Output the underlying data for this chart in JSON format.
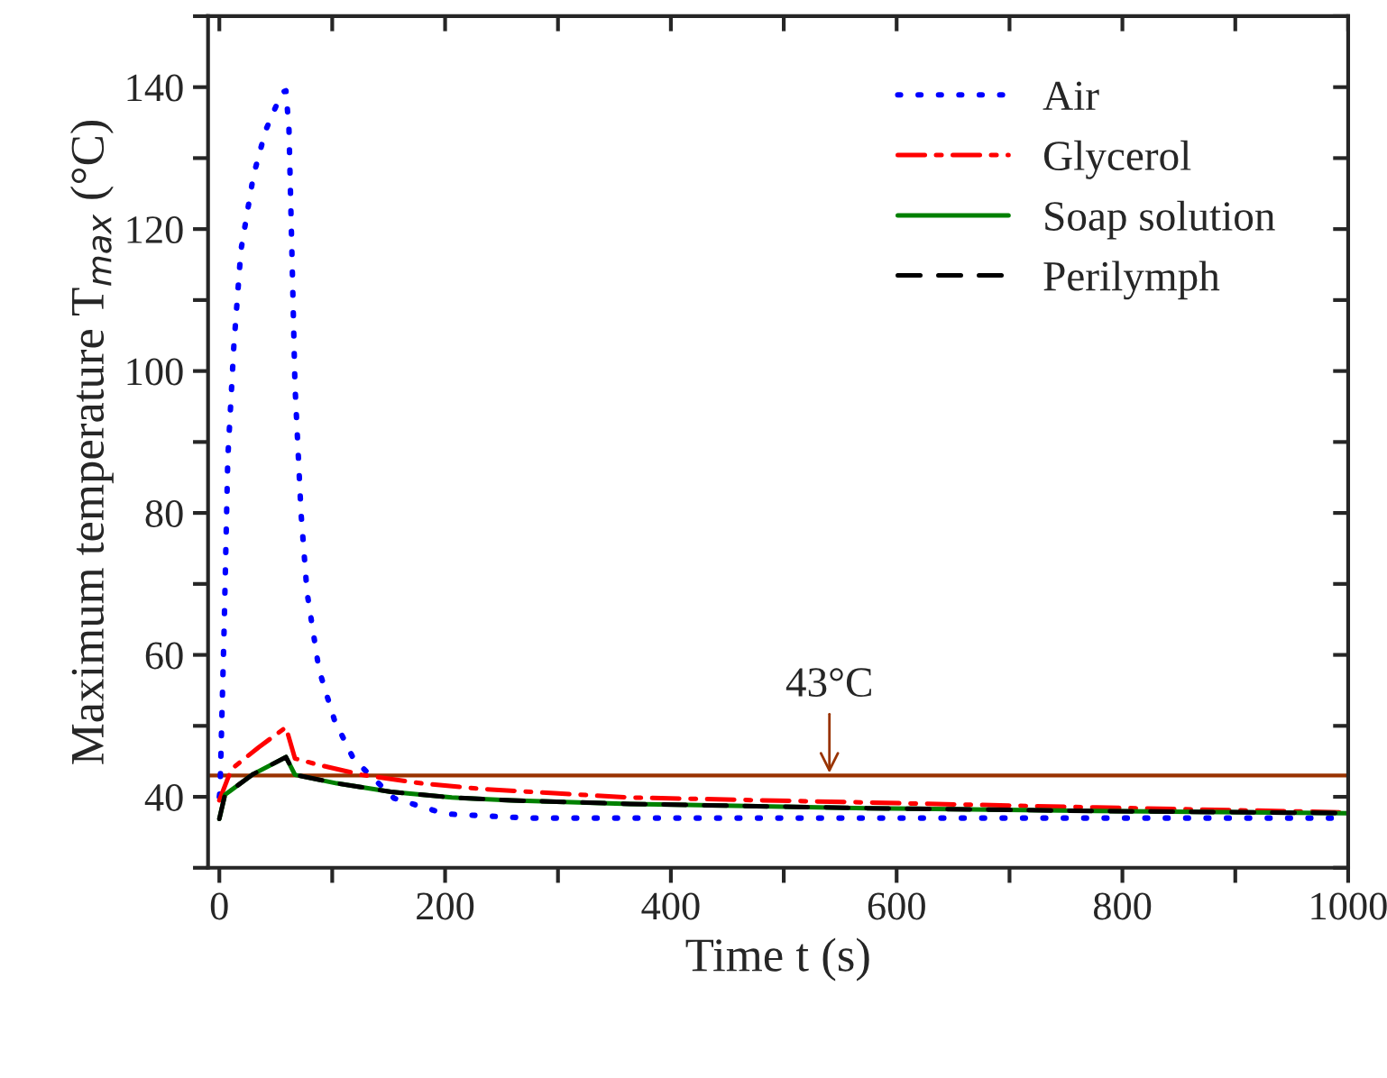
{
  "chart_data": {
    "type": "line",
    "xlabel": "Time t (s)",
    "ylabel": "Maximum temperature T$_{max}$ (°C)",
    "xlim": [
      -10,
      1000
    ],
    "ylim": [
      30,
      150
    ],
    "xticks": [
      0,
      {
        "value": 100,
        "label": null
      },
      200,
      {
        "value": 300,
        "label": null
      },
      400,
      {
        "value": 500,
        "label": null
      },
      600,
      {
        "value": 700,
        "label": null
      },
      800,
      {
        "value": 900,
        "label": null
      },
      1000
    ],
    "yticks": [
      {
        "value": 30,
        "label": null
      },
      40,
      {
        "value": 50,
        "label": null
      },
      60,
      {
        "value": 70,
        "label": null
      },
      80,
      {
        "value": 90,
        "label": null
      },
      100,
      {
        "value": 110,
        "label": null
      },
      120,
      {
        "value": 130,
        "label": null
      },
      140,
      {
        "value": 150,
        "label": null
      }
    ],
    "legend": "top right",
    "grid": false,
    "marker": "none",
    "ref_lines": [
      {
        "axis": "y",
        "value": 43,
        "label": "43°C",
        "color": "#993300",
        "line_style": "solid"
      }
    ],
    "series": [
      {
        "name": "Air",
        "color": "#0000ff",
        "line_style": "dotted",
        "x": [
          0,
          0.6,
          4.3,
          7.5,
          12.8,
          19.1,
          30.3,
          41,
          55.3,
          59,
          61.7,
          64.4,
          67,
          72.4,
          77.7,
          88.3,
          102,
          119,
          154.7,
          200,
          274,
          400,
          600,
          800,
          1000
        ],
        "values": [
          40,
          40.9,
          64.1,
          87.7,
          103.4,
          117,
          127.6,
          133.9,
          139.2,
          139.5,
          134,
          116,
          98,
          79.9,
          68.8,
          57.9,
          50.8,
          45.3,
          39.8,
          37.6,
          37,
          37,
          37,
          37,
          37
        ]
      },
      {
        "name": "Glycerol",
        "color": "#ff0000",
        "line_style": "dashdot",
        "x": [
          0,
          10.7,
          35,
          59,
          67,
          88,
          126,
          179,
          233,
          297,
          364,
          574,
          777,
          1000
        ],
        "values": [
          39.5,
          43.9,
          47,
          49.8,
          45.4,
          44.5,
          43.1,
          41.9,
          41.1,
          40.5,
          39.9,
          39.2,
          38.5,
          37.8
        ]
      },
      {
        "name": "Soap solution",
        "color": "#008000",
        "line_style": "solid",
        "x": [
          0,
          5,
          30,
          59,
          67,
          104,
          152,
          206,
          259,
          364,
          574,
          777,
          1000
        ],
        "values": [
          36.9,
          40.3,
          43.2,
          45.6,
          43.1,
          41.9,
          40.7,
          39.9,
          39.5,
          39,
          38.4,
          38,
          37.7
        ]
      },
      {
        "name": "Perilymph",
        "color": "#000000",
        "line_style": "dashed",
        "x": [
          0,
          5,
          30,
          59,
          67,
          104,
          152,
          206,
          259,
          364,
          574,
          777,
          1000
        ],
        "values": [
          36.9,
          40.3,
          43.2,
          45.6,
          43.1,
          41.9,
          40.7,
          39.9,
          39.5,
          39,
          38.4,
          38,
          37.7
        ]
      }
    ]
  }
}
